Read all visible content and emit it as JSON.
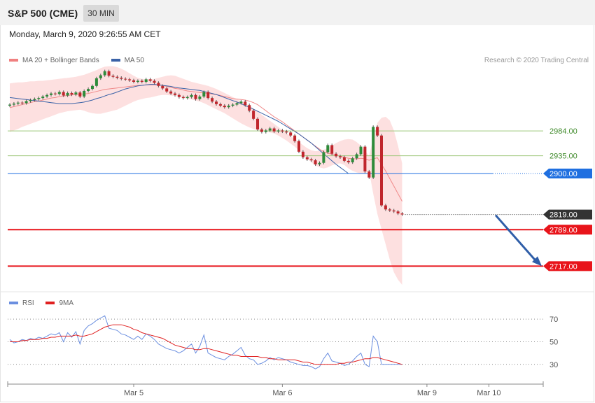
{
  "header": {
    "title": "S&P 500 (CME)",
    "timeframe": "30 MIN"
  },
  "datetime": "Monday, March 9, 2020 9:26:55 AM CET",
  "legend_main": [
    {
      "label": "MA 20 + Bollinger Bands",
      "color": "#f08080"
    },
    {
      "label": "MA 50",
      "color": "#3a62a7"
    }
  ],
  "credit": "Research © 2020 Trading Central",
  "legend_rsi": [
    {
      "label": "RSI",
      "color": "#6b8fe0"
    },
    {
      "label": "9MA",
      "color": "#e02020"
    }
  ],
  "colors": {
    "up": "#2e8b3a",
    "down": "#c0262c",
    "support": "#e8141a",
    "ma50": "#3a62a7",
    "pivot": "#1f6fe0",
    "resistance": "#9ec77a",
    "last": "#333333",
    "arrow": "#2f5ea8"
  },
  "chart_data": [
    {
      "type": "candlestick",
      "ylim": [
        2665,
        3110
      ],
      "x_ticks": [
        "Mar 5",
        "Mar 6",
        "Mar 9",
        "Mar 10"
      ],
      "levels": [
        {
          "label": "2984.00",
          "value": 2984,
          "kind": "resistance"
        },
        {
          "label": "2935.00",
          "value": 2935,
          "kind": "resistance"
        },
        {
          "label": "2900.00",
          "value": 2900,
          "kind": "pivot"
        },
        {
          "label": "2819.00",
          "value": 2819,
          "kind": "last"
        },
        {
          "label": "2789.00",
          "value": 2789,
          "kind": "support"
        },
        {
          "label": "2717.00",
          "value": 2717,
          "kind": "support"
        }
      ],
      "close_series": [
        3036,
        3038,
        3040,
        3039,
        3043,
        3045,
        3047,
        3049,
        3052,
        3055,
        3058,
        3057,
        3061,
        3054,
        3059,
        3056,
        3060,
        3052,
        3063,
        3067,
        3073,
        3088,
        3094,
        3102,
        3093,
        3091,
        3089,
        3087,
        3086,
        3084,
        3081,
        3083,
        3081,
        3086,
        3083,
        3079,
        3073,
        3068,
        3062,
        3058,
        3055,
        3051,
        3049,
        3051,
        3055,
        3047,
        3052,
        3061,
        3049,
        3042,
        3037,
        3034,
        3031,
        3034,
        3036,
        3039,
        3042,
        3035,
        3024,
        3008,
        2987,
        2982,
        2985,
        2989,
        2983,
        2985,
        2983,
        2981,
        2975,
        2964,
        2943,
        2932,
        2928,
        2926,
        2918,
        2921,
        2942,
        2956,
        2939,
        2934,
        2932,
        2925,
        2922,
        2930,
        2938,
        2953,
        2904,
        2892,
        2992,
        2975,
        2837,
        2829,
        2827,
        2825,
        2821,
        2819
      ],
      "ma20": [
        3030,
        3032,
        3034,
        3036,
        3038,
        3040,
        3042,
        3043,
        3045,
        3047,
        3049,
        3050,
        3052,
        3053,
        3054,
        3055,
        3056,
        3057,
        3057,
        3058,
        3060,
        3062,
        3064,
        3066,
        3067,
        3068,
        3069,
        3070,
        3071,
        3072,
        3073,
        3074,
        3074,
        3075,
        3075,
        3075,
        3075,
        3074,
        3072,
        3070,
        3068,
        3067,
        3065,
        3063,
        3062,
        3061,
        3060,
        3059,
        3058,
        3057,
        3056,
        3054,
        3052,
        3050,
        3048,
        3047,
        3046,
        3045,
        3043,
        3040,
        3036,
        3030,
        3024,
        3018,
        3012,
        3007,
        3002,
        2996,
        2990,
        2984,
        2978,
        2972,
        2966,
        2960,
        2954,
        2948,
        2943,
        2940,
        2938,
        2936,
        2934,
        2932,
        2930,
        2929,
        2929,
        2930,
        2929,
        2926,
        2929,
        2931,
        2918,
        2905,
        2890,
        2875,
        2860,
        2845
      ],
      "bb_upper": [
        3078,
        3079,
        3080,
        3080,
        3081,
        3082,
        3082,
        3083,
        3083,
        3084,
        3085,
        3086,
        3087,
        3088,
        3089,
        3090,
        3091,
        3093,
        3095,
        3098,
        3101,
        3104,
        3108,
        3111,
        3112,
        3112,
        3110,
        3107,
        3103,
        3098,
        3093,
        3089,
        3087,
        3086,
        3086,
        3087,
        3089,
        3091,
        3093,
        3094,
        3093,
        3090,
        3087,
        3084,
        3081,
        3079,
        3077,
        3075,
        3073,
        3070,
        3067,
        3063,
        3059,
        3055,
        3051,
        3047,
        3043,
        3039,
        3034,
        3028,
        3022,
        3016,
        3010,
        3004,
        2998,
        2992,
        2986,
        2980,
        2974,
        2968,
        2962,
        2956,
        2950,
        2946,
        2944,
        2945,
        2947,
        2950,
        2955,
        2960,
        2964,
        2967,
        2968,
        2967,
        2962,
        2955,
        2945,
        2935,
        2970,
        3000,
        3010,
        3012,
        3005,
        2985,
        2955,
        2920
      ],
      "bb_lower": [
        2982,
        2985,
        2988,
        2992,
        2995,
        2998,
        3001,
        3004,
        3007,
        3010,
        3013,
        3016,
        3019,
        3021,
        3023,
        3024,
        3025,
        3026,
        3024,
        3021,
        3019,
        3018,
        3018,
        3020,
        3022,
        3024,
        3026,
        3030,
        3034,
        3038,
        3042,
        3045,
        3047,
        3049,
        3050,
        3052,
        3054,
        3055,
        3055,
        3054,
        3053,
        3052,
        3050,
        3048,
        3046,
        3044,
        3042,
        3039,
        3035,
        3031,
        3027,
        3023,
        3019,
        3014,
        3009,
        3004,
        2999,
        2995,
        2991,
        2988,
        2986,
        2984,
        2983,
        2981,
        2979,
        2975,
        2970,
        2965,
        2959,
        2953,
        2946,
        2938,
        2930,
        2922,
        2916,
        2912,
        2910,
        2912,
        2916,
        2919,
        2920,
        2917,
        2910,
        2905,
        2902,
        2900,
        2900,
        2905,
        2860,
        2820,
        2790,
        2760,
        2730,
        2705,
        2690,
        2680
      ],
      "ma50": [
        3050,
        3049,
        3048,
        3047,
        3046,
        3045,
        3044,
        3043,
        3042,
        3041,
        3040,
        3039,
        3038,
        3038,
        3038,
        3038,
        3039,
        3040,
        3041,
        3043,
        3045,
        3048,
        3050,
        3053,
        3056,
        3058,
        3061,
        3064,
        3067,
        3069,
        3071,
        3073,
        3074,
        3075,
        3076,
        3076,
        3075,
        3074,
        3073,
        3072,
        3070,
        3069,
        3068,
        3067,
        3066,
        3065,
        3064,
        3062,
        3060,
        3058,
        3056,
        3053,
        3050,
        3047,
        3044,
        3041,
        3038,
        3034,
        3031,
        3027,
        3023,
        3019,
        3015,
        3011,
        3007,
        3003,
        2998,
        2993,
        2988,
        2983,
        2978,
        2972,
        2966,
        2960,
        2953,
        2946,
        2939,
        2932,
        2925,
        2918,
        2912,
        2906,
        2900
      ]
    },
    {
      "type": "line",
      "ylim": [
        15,
        80
      ],
      "y_ticks": [
        70,
        50,
        30
      ],
      "series": [
        {
          "name": "RSI",
          "values": [
            52,
            49,
            50,
            52,
            51,
            53,
            52,
            54,
            53,
            55,
            57,
            56,
            58,
            50,
            58,
            54,
            59,
            48,
            60,
            64,
            66,
            69,
            71,
            73,
            62,
            61,
            60,
            57,
            56,
            54,
            52,
            55,
            52,
            57,
            55,
            52,
            48,
            46,
            44,
            43,
            42,
            40,
            42,
            45,
            48,
            40,
            46,
            56,
            40,
            38,
            36,
            35,
            34,
            37,
            39,
            42,
            45,
            38,
            35,
            34,
            30,
            31,
            33,
            36,
            34,
            36,
            35,
            34,
            32,
            31,
            30,
            29,
            29,
            28,
            26,
            28,
            35,
            40,
            33,
            32,
            31,
            29,
            30,
            33,
            37,
            40,
            30,
            28,
            55,
            50,
            30,
            30,
            30,
            30,
            30,
            30
          ]
        },
        {
          "name": "9MA",
          "values": [
            50,
            50,
            50,
            51,
            51,
            52,
            52,
            52,
            53,
            53,
            54,
            54,
            55,
            55,
            55,
            55,
            56,
            55,
            55,
            56,
            57,
            59,
            61,
            63,
            64,
            65,
            65,
            65,
            64,
            63,
            61,
            60,
            58,
            57,
            56,
            55,
            54,
            53,
            51,
            49,
            47,
            46,
            45,
            44,
            44,
            43,
            43,
            44,
            44,
            43,
            42,
            41,
            40,
            39,
            38,
            38,
            37,
            37,
            37,
            37,
            37,
            36,
            36,
            35,
            35,
            34,
            34,
            34,
            34,
            34,
            33,
            32,
            32,
            31,
            30,
            30,
            30,
            30,
            30,
            30,
            31,
            31,
            32,
            32,
            33,
            34,
            35,
            35,
            36,
            36,
            35,
            34,
            33,
            32,
            31,
            30
          ]
        }
      ]
    }
  ]
}
